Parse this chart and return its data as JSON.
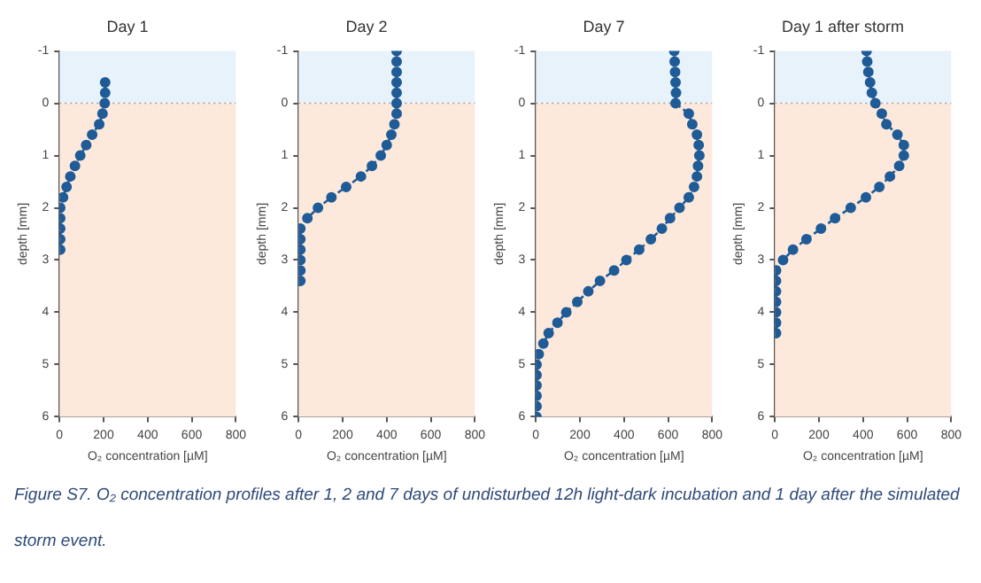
{
  "chart_data": [
    {
      "type": "line",
      "orientation": "horizontal",
      "title": "Day 1",
      "xlabel": "O₂ concentration [µM]",
      "ylabel": "depth [mm]",
      "xlim": [
        0,
        800
      ],
      "xticks": [
        0,
        200,
        400,
        600,
        800
      ],
      "ylim": [
        6,
        -1
      ],
      "yticks": [
        -1,
        0,
        1,
        2,
        3,
        4,
        5,
        6
      ],
      "grid": false,
      "legend": false,
      "marker": "circle",
      "line_style": "dashed",
      "bands": [
        {
          "axis": "y",
          "from": -1,
          "to": 0,
          "color": "#e8f2fb"
        },
        {
          "axis": "y",
          "from": 0,
          "to": 6,
          "color": "#fde9dc"
        }
      ],
      "ref_lines": [
        {
          "axis": "y",
          "value": 0,
          "color": "#a0a0a0",
          "line_style": "dotted"
        }
      ],
      "series": [
        {
          "color": "#1f5b96",
          "x": [
            -0.4,
            -0.2,
            0,
            0.2,
            0.4,
            0.6,
            0.8,
            1.0,
            1.2,
            1.4,
            1.6,
            1.8,
            2.0,
            2.2,
            2.4,
            2.6,
            2.8
          ],
          "values": [
            207,
            207,
            205,
            195,
            180,
            148,
            121,
            94,
            70,
            49,
            32,
            16,
            3,
            3,
            3,
            3,
            3
          ]
        }
      ]
    },
    {
      "type": "line",
      "orientation": "horizontal",
      "title": "Day 2",
      "xlabel": "O₂ concentration [µM]",
      "ylabel": "depth [mm]",
      "xlim": [
        0,
        800
      ],
      "xticks": [
        0,
        200,
        400,
        600,
        800
      ],
      "ylim": [
        6,
        -1
      ],
      "yticks": [
        -1,
        0,
        1,
        2,
        3,
        4,
        5,
        6
      ],
      "grid": false,
      "legend": false,
      "marker": "circle",
      "line_style": "dashed",
      "bands": [
        {
          "axis": "y",
          "from": -1,
          "to": 0,
          "color": "#e8f2fb"
        },
        {
          "axis": "y",
          "from": 0,
          "to": 6,
          "color": "#fde9dc"
        }
      ],
      "ref_lines": [
        {
          "axis": "y",
          "value": 0,
          "color": "#a0a0a0",
          "line_style": "dotted"
        }
      ],
      "series": [
        {
          "color": "#1f5b96",
          "x": [
            -1,
            -0.8,
            -0.6,
            -0.4,
            -0.2,
            0,
            0.2,
            0.4,
            0.6,
            0.8,
            1.0,
            1.2,
            1.4,
            1.6,
            1.8,
            2.0,
            2.2,
            2.4,
            2.6,
            2.8,
            3.0,
            3.2,
            3.4
          ],
          "values": [
            445,
            445,
            445,
            445,
            445,
            445,
            445,
            435,
            421,
            400,
            373,
            333,
            283,
            216,
            149,
            88,
            40,
            8,
            8,
            8,
            8,
            8,
            8
          ]
        }
      ]
    },
    {
      "type": "line",
      "orientation": "horizontal",
      "title": "Day 7",
      "xlabel": "O₂ concentration [µM]",
      "ylabel": "depth [mm]",
      "xlim": [
        0,
        800
      ],
      "xticks": [
        0,
        200,
        400,
        600,
        800
      ],
      "ylim": [
        6,
        -1
      ],
      "yticks": [
        -1,
        0,
        1,
        2,
        3,
        4,
        5,
        6
      ],
      "grid": false,
      "legend": false,
      "marker": "circle",
      "line_style": "dashed",
      "bands": [
        {
          "axis": "y",
          "from": -1,
          "to": 0,
          "color": "#e8f2fb"
        },
        {
          "axis": "y",
          "from": 0,
          "to": 6,
          "color": "#fde9dc"
        }
      ],
      "ref_lines": [
        {
          "axis": "y",
          "value": 0,
          "color": "#a0a0a0",
          "line_style": "dotted"
        }
      ],
      "series": [
        {
          "color": "#1f5b96",
          "x": [
            -1,
            -0.8,
            -0.6,
            -0.4,
            -0.2,
            0,
            0.2,
            0.4,
            0.6,
            0.8,
            1.0,
            1.2,
            1.4,
            1.6,
            1.8,
            2.0,
            2.2,
            2.4,
            2.6,
            2.8,
            3.0,
            3.2,
            3.4,
            3.6,
            3.8,
            4.0,
            4.2,
            4.4,
            4.6,
            4.8,
            5.0,
            5.2,
            5.4,
            5.6,
            5.8,
            6.0
          ],
          "values": [
            628,
            630,
            632,
            634,
            636,
            634,
            694,
            710,
            731,
            739,
            742,
            736,
            731,
            718,
            694,
            652,
            609,
            572,
            522,
            469,
            411,
            355,
            291,
            238,
            188,
            138,
            98,
            58,
            34,
            13,
            3,
            3,
            3,
            3,
            3,
            3
          ]
        }
      ]
    },
    {
      "type": "line",
      "orientation": "horizontal",
      "title": "Day 1 after storm",
      "xlabel": "O₂ concentration [µM]",
      "ylabel": "depth [mm]",
      "xlim": [
        0,
        800
      ],
      "xticks": [
        0,
        200,
        400,
        600,
        800
      ],
      "ylim": [
        6,
        -1
      ],
      "yticks": [
        -1,
        0,
        1,
        2,
        3,
        4,
        5,
        6
      ],
      "grid": false,
      "legend": false,
      "marker": "circle",
      "line_style": "dashed",
      "bands": [
        {
          "axis": "y",
          "from": -1,
          "to": 0,
          "color": "#e8f2fb"
        },
        {
          "axis": "y",
          "from": 0,
          "to": 6,
          "color": "#fde9dc"
        }
      ],
      "ref_lines": [
        {
          "axis": "y",
          "value": 0,
          "color": "#a0a0a0",
          "line_style": "dotted"
        }
      ],
      "annotations": [
        "Figure S7. O₂ concentration profiles after 1, 2 and 7 days of undisturbed 12h light-dark incubation and 1 day after the simulated storm event."
      ],
      "series": [
        {
          "color": "#1f5b96",
          "x": [
            -1,
            -0.8,
            -0.6,
            -0.4,
            -0.2,
            0,
            0.2,
            0.4,
            0.6,
            0.8,
            1.0,
            1.2,
            1.4,
            1.6,
            1.8,
            2.0,
            2.2,
            2.4,
            2.6,
            2.8,
            3.0,
            3.2,
            3.4,
            3.6,
            3.8,
            4.0,
            4.2,
            4.4
          ],
          "values": [
            416,
            419,
            424,
            432,
            440,
            456,
            485,
            506,
            556,
            585,
            585,
            564,
            522,
            474,
            413,
            344,
            273,
            209,
            143,
            82,
            37,
            5,
            5,
            5,
            5,
            5,
            5,
            5
          ]
        }
      ]
    }
  ]
}
